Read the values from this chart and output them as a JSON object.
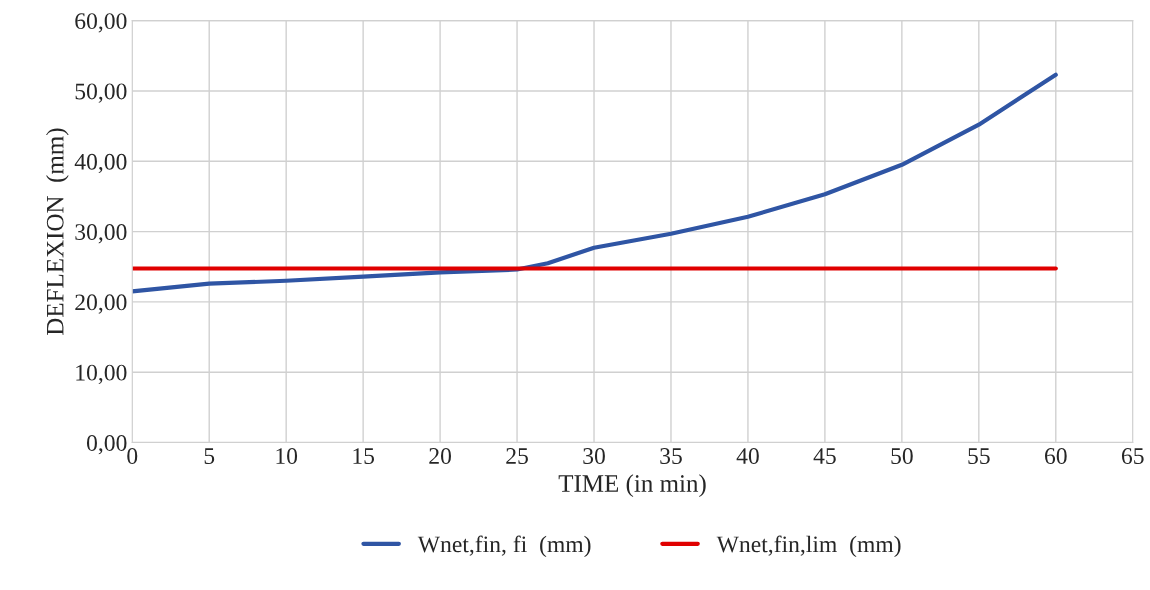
{
  "chart_data": {
    "type": "line",
    "xlabel": "TIME (in min)",
    "ylabel": "DEFLEXION  (mm)",
    "xlim": [
      0,
      65
    ],
    "xticks": [
      0,
      5,
      10,
      15,
      20,
      25,
      30,
      35,
      40,
      45,
      50,
      55,
      60,
      65
    ],
    "ylim": [
      0,
      60
    ],
    "yticks": [
      {
        "value": 0,
        "label": "0,00"
      },
      {
        "value": 10,
        "label": "10,00"
      },
      {
        "value": 20,
        "label": "20,00"
      },
      {
        "value": 30,
        "label": "30,00"
      },
      {
        "value": 40,
        "label": "40,00"
      },
      {
        "value": 50,
        "label": "50,00"
      },
      {
        "value": 60,
        "label": "60,00"
      }
    ],
    "grid": true,
    "legend": "bottom",
    "marker": "none",
    "line_style": "solid",
    "series": [
      {
        "name": "Wnet,fin, fi  (mm)",
        "color": "#2f55a4",
        "x": [
          0,
          5,
          10,
          15,
          20,
          25,
          27,
          30,
          35,
          40,
          45,
          50,
          55,
          60
        ],
        "values": [
          21.5,
          22.6,
          23.0,
          23.6,
          24.2,
          24.6,
          25.5,
          27.7,
          29.7,
          32.1,
          35.3,
          39.5,
          45.2,
          52.3
        ]
      },
      {
        "name": "Wnet,fin,lim  (mm)",
        "color": "#e00000",
        "x": [
          0,
          60
        ],
        "values": [
          24.75,
          24.75
        ]
      }
    ]
  }
}
